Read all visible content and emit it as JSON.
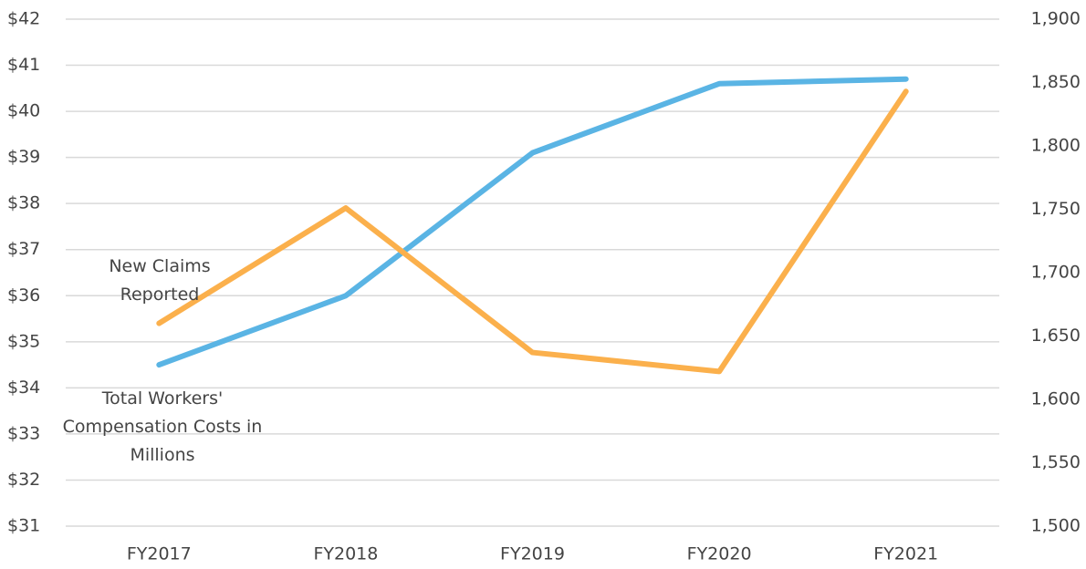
{
  "chart_data": {
    "type": "line",
    "categories": [
      "FY2017",
      "FY2018",
      "FY2019",
      "FY2020",
      "FY2021"
    ],
    "series": [
      {
        "name": "Total Workers' Compensation Costs in Millions",
        "color": "#5ab4e4",
        "axis": "y",
        "values": [
          34.5,
          36.0,
          39.1,
          40.6,
          40.7
        ]
      },
      {
        "name": "New Claims Reported",
        "color": "#fbb04c",
        "axis": "y2",
        "values": [
          1660,
          1751,
          1637,
          1622,
          1843
        ]
      }
    ],
    "ylim": [
      31,
      42
    ],
    "yticks": [
      {
        "value": 31,
        "label": "$31"
      },
      {
        "value": 32,
        "label": "$32"
      },
      {
        "value": 33,
        "label": "$33"
      },
      {
        "value": 34,
        "label": "$34"
      },
      {
        "value": 35,
        "label": "$35"
      },
      {
        "value": 36,
        "label": "$36"
      },
      {
        "value": 37,
        "label": "$37"
      },
      {
        "value": 38,
        "label": "$38"
      },
      {
        "value": 39,
        "label": "$39"
      },
      {
        "value": 40,
        "label": "$40"
      },
      {
        "value": 41,
        "label": "$41"
      },
      {
        "value": 42,
        "label": "$42"
      }
    ],
    "y2lim": [
      1500,
      1900
    ],
    "y2ticks": [
      {
        "value": 1500,
        "label": "1,500"
      },
      {
        "value": 1550,
        "label": "1,550"
      },
      {
        "value": 1600,
        "label": "1,600"
      },
      {
        "value": 1650,
        "label": "1,650"
      },
      {
        "value": 1700,
        "label": "1,700"
      },
      {
        "value": 1750,
        "label": "1,750"
      },
      {
        "value": 1800,
        "label": "1,800"
      },
      {
        "value": 1850,
        "label": "1,850"
      },
      {
        "value": 1900,
        "label": "1,900"
      }
    ],
    "grid": true
  }
}
